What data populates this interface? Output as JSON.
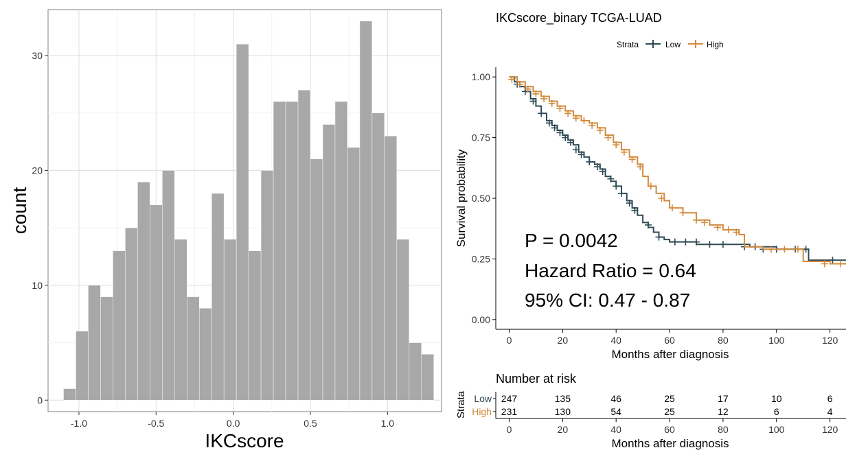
{
  "chart_data": [
    {
      "type": "bar",
      "xlabel": "IKCscore",
      "ylabel": "count",
      "xlim": [
        -1.2,
        1.35
      ],
      "ylim": [
        -1,
        34
      ],
      "x_ticks": [
        -1.0,
        -0.5,
        0.0,
        0.5,
        1.0
      ],
      "x_tick_labels": [
        "-1.0",
        "-0.5",
        "0.0",
        "0.5",
        "1.0"
      ],
      "y_ticks": [
        0,
        10,
        20,
        30
      ],
      "y_tick_labels": [
        "0",
        "10",
        "20",
        "30"
      ],
      "grid": true,
      "bin_width": 0.08,
      "bin_starts": [
        -1.1,
        -1.02,
        -0.94,
        -0.86,
        -0.78,
        -0.7,
        -0.62,
        -0.54,
        -0.46,
        -0.38,
        -0.3,
        -0.22,
        -0.14,
        -0.06,
        0.02,
        0.1,
        0.18,
        0.26,
        0.34,
        0.42,
        0.5,
        0.58,
        0.66,
        0.74,
        0.82,
        0.9,
        0.98,
        1.06,
        1.14,
        1.22
      ],
      "counts": [
        1,
        6,
        10,
        9,
        13,
        15,
        19,
        17,
        20,
        14,
        9,
        8,
        18,
        14,
        31,
        13,
        20,
        26,
        26,
        27,
        21,
        24,
        26,
        22,
        33,
        25,
        23,
        14,
        5,
        4
      ],
      "bar_color": "#a8a8a8"
    },
    {
      "type": "line",
      "title": "IKCscore_binary TCGA-LUAD",
      "xlabel": "Months after diagnosis",
      "ylabel": "Survival probability",
      "xlim": [
        -5,
        126
      ],
      "ylim": [
        -0.04,
        1.04
      ],
      "x_ticks": [
        0,
        20,
        40,
        60,
        80,
        100,
        120
      ],
      "x_tick_labels": [
        "0",
        "20",
        "40",
        "60",
        "80",
        "100",
        "120"
      ],
      "y_ticks": [
        0.0,
        0.25,
        0.5,
        0.75,
        1.0
      ],
      "y_tick_labels": [
        "0.00",
        "0.25",
        "0.50",
        "0.75",
        "1.00"
      ],
      "legend": {
        "title": "Strata",
        "position": "top",
        "entries": [
          "Low",
          "High"
        ]
      },
      "series": [
        {
          "name": "Low",
          "color": "#2e4a55",
          "x": [
            0,
            2,
            4,
            6,
            8,
            10,
            12,
            14,
            16,
            18,
            20,
            22,
            24,
            26,
            28,
            30,
            32,
            34,
            36,
            38,
            40,
            42,
            44,
            46,
            48,
            50,
            52,
            54,
            56,
            58,
            60,
            65,
            70,
            80,
            90,
            100,
            105,
            112,
            120,
            126
          ],
          "y": [
            1.0,
            0.98,
            0.96,
            0.94,
            0.91,
            0.88,
            0.85,
            0.82,
            0.8,
            0.78,
            0.76,
            0.74,
            0.72,
            0.69,
            0.67,
            0.65,
            0.64,
            0.62,
            0.59,
            0.57,
            0.55,
            0.52,
            0.49,
            0.46,
            0.43,
            0.4,
            0.38,
            0.36,
            0.34,
            0.33,
            0.32,
            0.32,
            0.31,
            0.31,
            0.3,
            0.29,
            0.29,
            0.245,
            0.245,
            0.245
          ],
          "censor_x": [
            3,
            6,
            9,
            12,
            15,
            17,
            19,
            21,
            23,
            25,
            27,
            30,
            33,
            35,
            38,
            40,
            42,
            45,
            47,
            52,
            56,
            62,
            66,
            70,
            75,
            80,
            88,
            92,
            95,
            100,
            107,
            111,
            121
          ],
          "censor_y": [
            0.97,
            0.94,
            0.9,
            0.85,
            0.81,
            0.79,
            0.77,
            0.75,
            0.73,
            0.7,
            0.68,
            0.65,
            0.63,
            0.61,
            0.58,
            0.55,
            0.52,
            0.48,
            0.45,
            0.39,
            0.34,
            0.32,
            0.32,
            0.32,
            0.31,
            0.31,
            0.3,
            0.3,
            0.29,
            0.29,
            0.29,
            0.29,
            0.245
          ]
        },
        {
          "name": "High",
          "color": "#d38a3c",
          "x": [
            0,
            3,
            6,
            9,
            12,
            15,
            18,
            21,
            24,
            27,
            30,
            33,
            36,
            39,
            42,
            45,
            48,
            50,
            52,
            55,
            58,
            60,
            65,
            70,
            75,
            80,
            86,
            88,
            95,
            100,
            105,
            110,
            120,
            126
          ],
          "y": [
            1.0,
            0.98,
            0.96,
            0.94,
            0.92,
            0.9,
            0.88,
            0.86,
            0.84,
            0.82,
            0.81,
            0.79,
            0.76,
            0.73,
            0.7,
            0.67,
            0.64,
            0.59,
            0.55,
            0.52,
            0.49,
            0.46,
            0.44,
            0.41,
            0.39,
            0.37,
            0.35,
            0.3,
            0.29,
            0.29,
            0.29,
            0.24,
            0.23,
            0.23
          ],
          "censor_x": [
            1,
            4,
            7,
            10,
            13,
            16,
            19,
            22,
            25,
            28,
            31,
            34,
            37,
            40,
            43,
            46,
            49,
            53,
            57,
            61,
            65,
            70,
            73,
            78,
            82,
            85,
            98,
            103,
            108,
            118,
            124
          ],
          "censor_y": [
            0.99,
            0.97,
            0.95,
            0.93,
            0.91,
            0.89,
            0.87,
            0.85,
            0.83,
            0.82,
            0.8,
            0.78,
            0.75,
            0.72,
            0.69,
            0.66,
            0.63,
            0.55,
            0.5,
            0.46,
            0.44,
            0.41,
            0.4,
            0.38,
            0.37,
            0.36,
            0.29,
            0.29,
            0.29,
            0.23,
            0.23
          ]
        }
      ],
      "annotations": [
        "P = 0.0042",
        "Hazard Ratio = 0.64",
        "95% CI: 0.47 - 0.87"
      ]
    },
    {
      "type": "table",
      "title": "Number at risk",
      "ylabel": "Strata",
      "xlabel": "Months after diagnosis",
      "x_ticks": [
        0,
        20,
        40,
        60,
        80,
        100,
        120
      ],
      "x_tick_labels": [
        "0",
        "20",
        "40",
        "60",
        "80",
        "100",
        "120"
      ],
      "rows": [
        {
          "name": "Low",
          "color": "#2e4a55",
          "values": [
            "247",
            "135",
            "46",
            "25",
            "17",
            "10",
            "6"
          ]
        },
        {
          "name": "High",
          "color": "#d38a3c",
          "values": [
            "231",
            "130",
            "54",
            "25",
            "12",
            "6",
            "4"
          ]
        }
      ]
    }
  ]
}
